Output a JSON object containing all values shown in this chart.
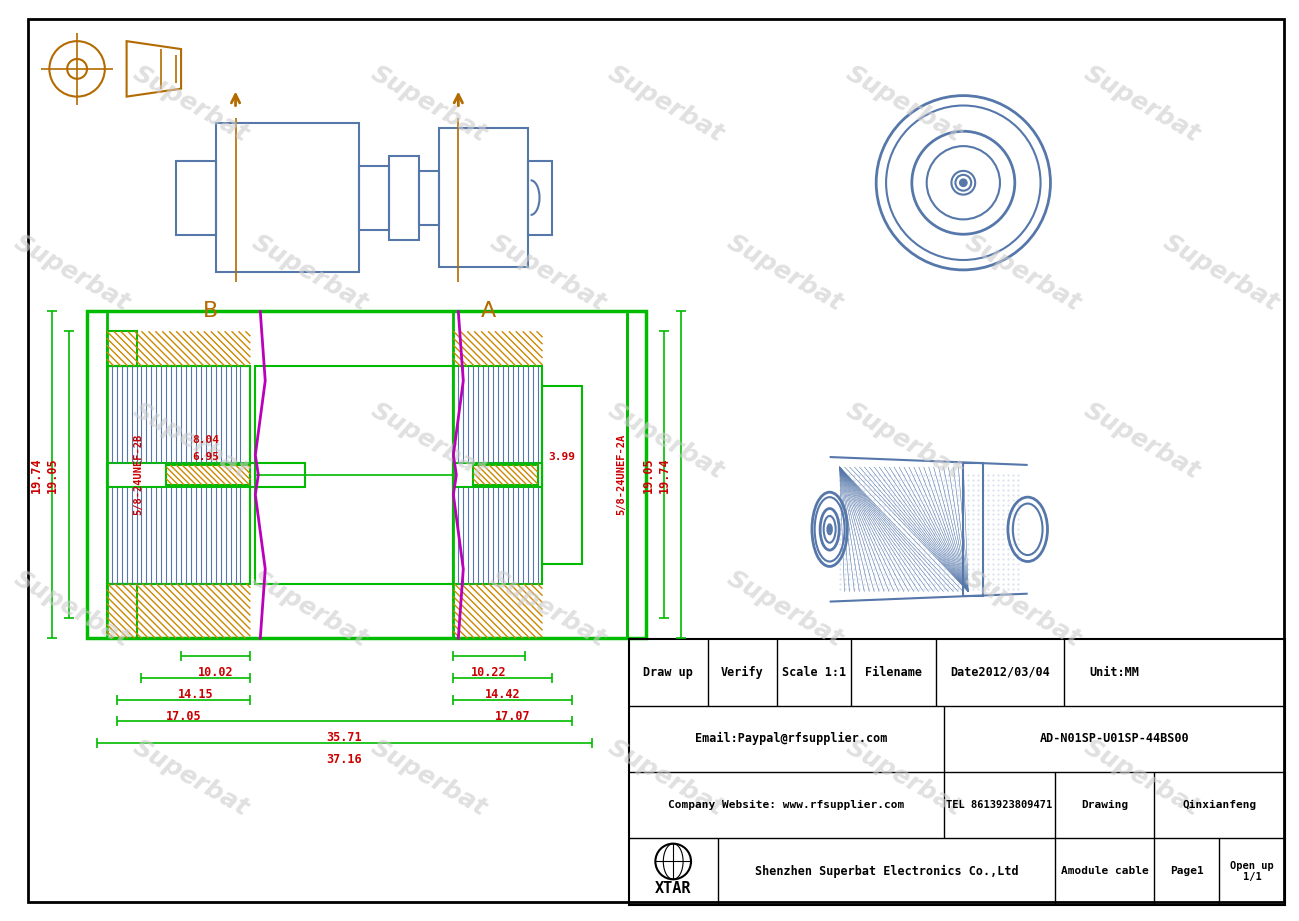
{
  "bg_color": "#ffffff",
  "border_color": "#000000",
  "blue": "#5577aa",
  "green": "#00bb00",
  "red": "#cc0000",
  "orange": "#cc8800",
  "dark_orange": "#b36b00",
  "magenta": "#bb00bb",
  "hatch_color": "#cc8800",
  "thread_color": "#5577aa",
  "watermark_color": "#cccccc",
  "dims": {
    "19_74": "19.74",
    "19_05": "19.05",
    "8_04": "8.04",
    "6_95": "6.95",
    "3_99": "3.99",
    "10_02": "10.02",
    "14_15": "14.15",
    "17_05": "17.05",
    "10_22": "10.22",
    "14_42": "14.42",
    "17_07": "17.07",
    "35_71": "35.71",
    "37_16": "37.16",
    "thread_B": "5/8-24UNEF-2B",
    "thread_A": "5/8-24UNEF-2A"
  },
  "table": {
    "draw_up": "Draw up",
    "verify": "Verify",
    "scale": "Scale 1:1",
    "filename": "Filename",
    "date": "Date2012/03/04",
    "unit": "Unit:MM",
    "email": "Email:Paypal@rfsupplier.com",
    "file_id": "AD-N01SP-U01SP-44BS00",
    "company_web": "Company Website: www.rfsupplier.com",
    "tel": "TEL 8613923809471",
    "drawing": "Drawing",
    "name": "Qinxianfeng",
    "company": "Shenzhen Superbat Electronics Co.,Ltd",
    "module": "Amodule cable",
    "page": "Page1",
    "open_up": "Open up\n1/1",
    "xtar": "XTAR"
  }
}
